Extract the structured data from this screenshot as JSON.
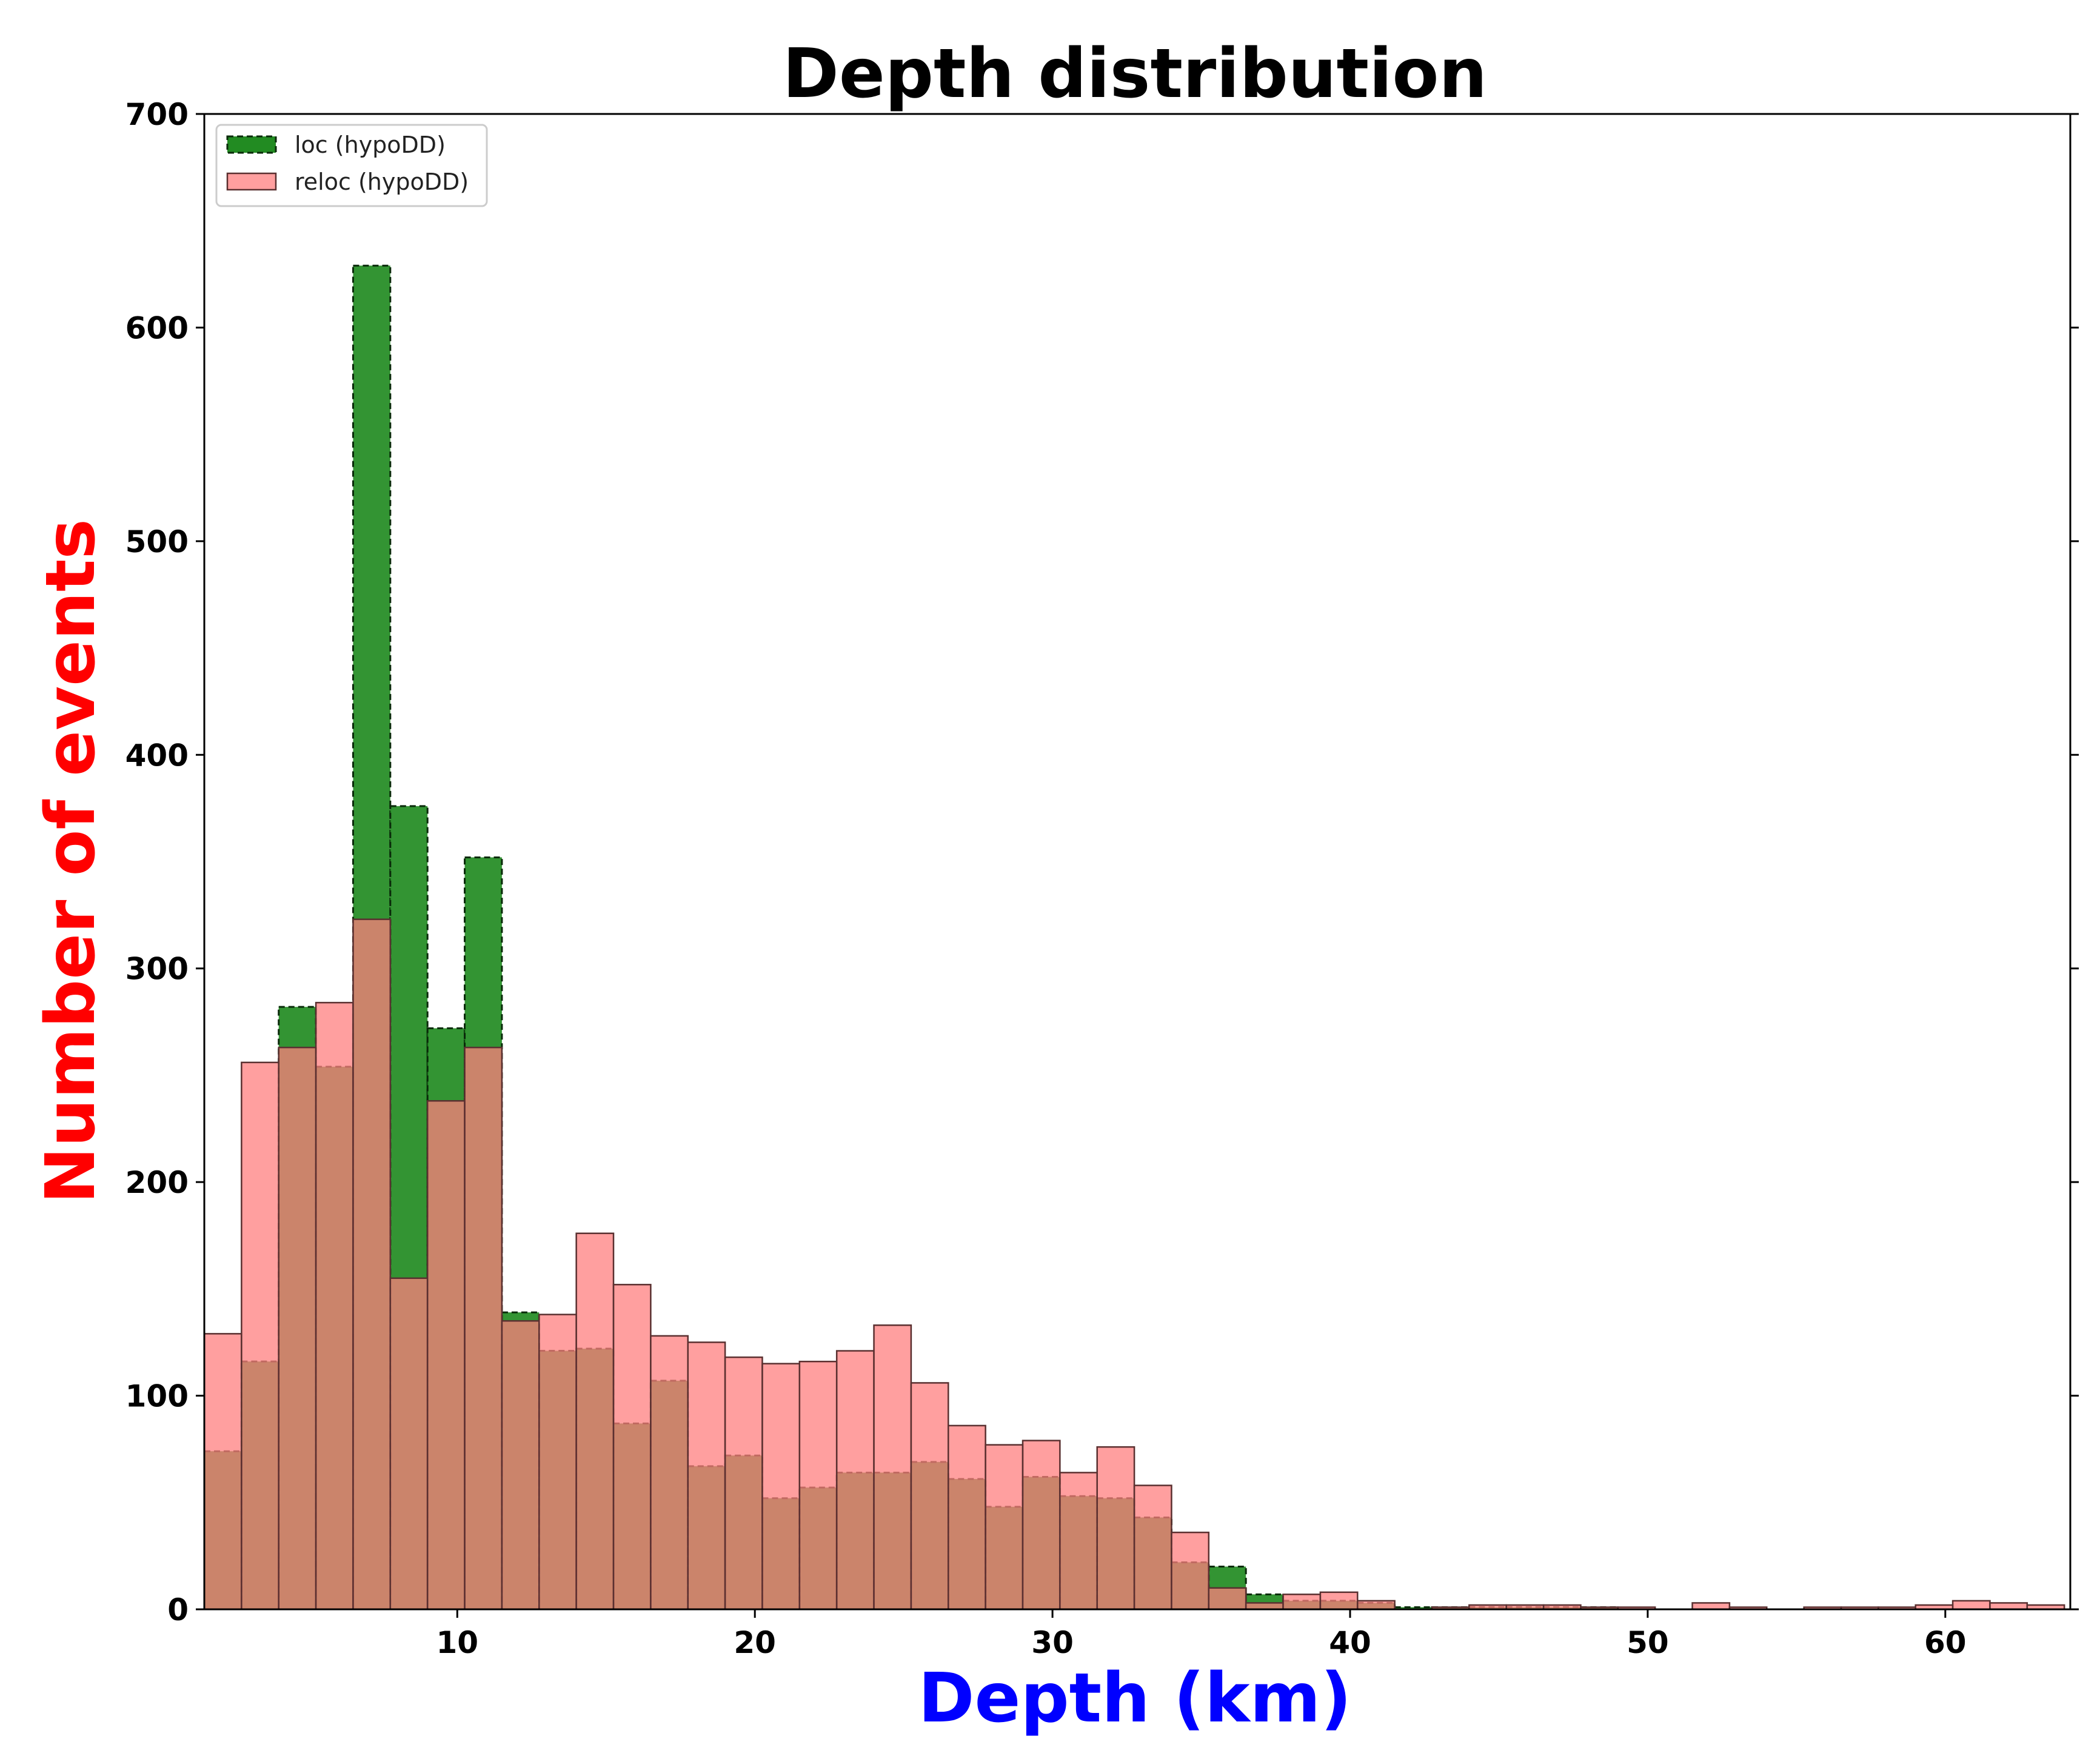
{
  "chart_data": {
    "type": "bar",
    "title": "Depth distribution",
    "xlabel": "Depth (km)",
    "ylabel": "Number of events",
    "xlim": [
      1.5,
      64.2
    ],
    "ylim": [
      0,
      700
    ],
    "xticks": [
      10,
      20,
      30,
      40,
      50,
      60
    ],
    "yticks": [
      0,
      100,
      200,
      300,
      400,
      500,
      600,
      700
    ],
    "legend_position": "top-left",
    "grid": false,
    "bin_width": 1.25,
    "bin_edges": [
      1.5,
      2.75,
      4.0,
      5.25,
      6.5,
      7.75,
      9.0,
      10.25,
      11.5,
      12.75,
      14.0,
      15.25,
      16.5,
      17.75,
      19.0,
      20.25,
      21.5,
      22.75,
      24.0,
      25.25,
      26.5,
      27.75,
      29.0,
      30.25,
      31.5,
      32.75,
      34.0,
      35.25,
      36.5,
      37.75,
      39.0,
      40.25,
      41.5,
      42.75,
      44.0,
      45.25,
      46.5,
      47.75,
      49.0,
      50.25,
      51.5,
      52.75,
      54.0,
      55.25,
      56.5,
      57.75,
      59.0,
      60.25,
      61.5,
      62.75,
      64.0
    ],
    "series": [
      {
        "name": "loc (hypoDD)",
        "color": "#228B22",
        "edge_style": "dashed",
        "values": [
          74,
          116,
          282,
          254,
          629,
          376,
          272,
          352,
          139,
          121,
          122,
          87,
          107,
          67,
          72,
          52,
          57,
          64,
          64,
          69,
          61,
          48,
          62,
          53,
          52,
          43,
          22,
          20,
          7,
          4,
          4,
          3,
          1,
          1,
          1,
          1,
          1,
          1,
          0,
          0,
          0,
          0,
          0,
          0,
          0,
          0,
          0,
          0,
          0,
          0
        ]
      },
      {
        "name": "reloc (hypoDD)",
        "color": "#FF7F7F",
        "edge_style": "solid",
        "values": [
          129,
          256,
          263,
          284,
          323,
          155,
          238,
          263,
          135,
          138,
          176,
          152,
          128,
          125,
          118,
          115,
          116,
          121,
          133,
          106,
          86,
          77,
          79,
          64,
          76,
          58,
          36,
          10,
          3,
          7,
          8,
          4,
          0,
          1,
          2,
          2,
          2,
          1,
          1,
          0,
          3,
          1,
          0,
          1,
          1,
          1,
          2,
          4,
          3,
          2
        ]
      }
    ]
  },
  "colors": {
    "title": "#000000",
    "xlabel": "#0000FF",
    "ylabel": "#FF0000",
    "axes": "#000000"
  }
}
